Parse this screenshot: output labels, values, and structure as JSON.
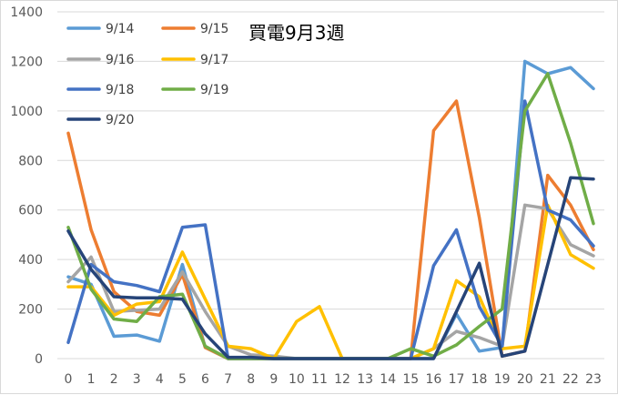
{
  "chart_data": {
    "type": "line",
    "title": "買電9月3週",
    "xlabel": "",
    "ylabel": "",
    "ylim": [
      0,
      1400
    ],
    "yticks": [
      0,
      200,
      400,
      600,
      800,
      1000,
      1200,
      1400
    ],
    "grid": true,
    "legend_position": "top-left",
    "x": [
      0,
      1,
      2,
      3,
      4,
      5,
      6,
      7,
      8,
      9,
      10,
      11,
      12,
      13,
      14,
      15,
      16,
      17,
      18,
      19,
      20,
      21,
      22,
      23
    ],
    "series": [
      {
        "name": "9/14",
        "color": "#5b9bd5",
        "values": [
          330,
          300,
          90,
          95,
          70,
          380,
          45,
          0,
          0,
          0,
          0,
          0,
          0,
          0,
          0,
          0,
          0,
          180,
          30,
          45,
          1200,
          1150,
          1175,
          1090
        ]
      },
      {
        "name": "9/15",
        "color": "#ed7d31",
        "values": [
          910,
          520,
          270,
          190,
          175,
          340,
          45,
          0,
          0,
          0,
          0,
          0,
          0,
          0,
          0,
          0,
          920,
          1040,
          570,
          10,
          30,
          740,
          620,
          440
        ]
      },
      {
        "name": "9/16",
        "color": "#a5a5a5",
        "values": [
          310,
          410,
          190,
          195,
          200,
          350,
          190,
          50,
          15,
          10,
          0,
          0,
          0,
          0,
          0,
          0,
          40,
          110,
          85,
          50,
          620,
          605,
          460,
          415
        ]
      },
      {
        "name": "9/17",
        "color": "#ffc000",
        "values": [
          290,
          290,
          175,
          220,
          230,
          430,
          240,
          50,
          40,
          0,
          150,
          210,
          0,
          0,
          0,
          0,
          40,
          315,
          250,
          40,
          50,
          620,
          420,
          365
        ]
      },
      {
        "name": "9/18",
        "color": "#4472c4",
        "values": [
          65,
          380,
          310,
          295,
          270,
          530,
          540,
          0,
          0,
          0,
          0,
          0,
          0,
          0,
          0,
          0,
          375,
          520,
          210,
          50,
          1040,
          600,
          560,
          455
        ]
      },
      {
        "name": "9/19",
        "color": "#70ad47",
        "values": [
          530,
          280,
          160,
          150,
          250,
          260,
          50,
          0,
          0,
          0,
          0,
          0,
          0,
          0,
          0,
          40,
          10,
          55,
          130,
          200,
          1000,
          1150,
          870,
          545
        ]
      },
      {
        "name": "9/20",
        "color": "#264478",
        "values": [
          515,
          360,
          250,
          245,
          245,
          240,
          100,
          5,
          5,
          0,
          0,
          0,
          0,
          0,
          0,
          0,
          0,
          190,
          385,
          10,
          30,
          380,
          730,
          725
        ]
      }
    ]
  }
}
